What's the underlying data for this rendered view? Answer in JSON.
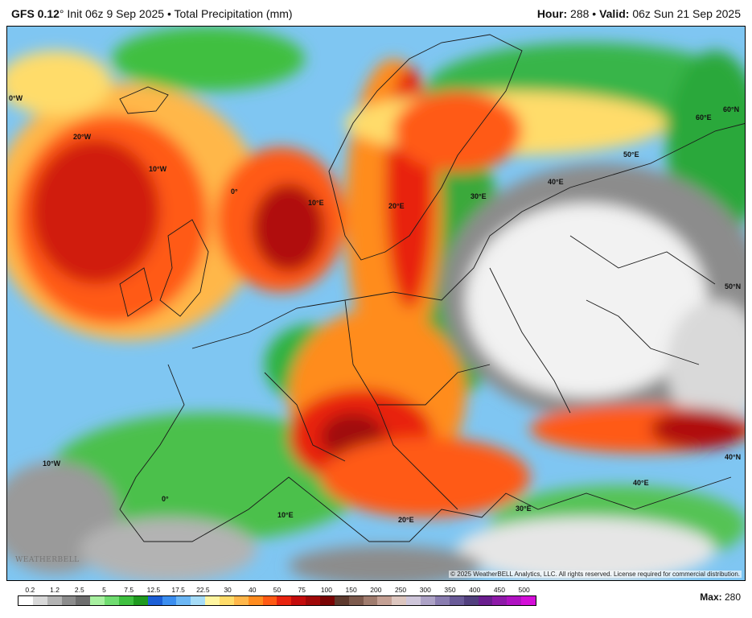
{
  "header": {
    "model": "GFS 0.12",
    "degree": "°",
    "init": "Init 06z 9 Sep 2025",
    "separator": "•",
    "product": "Total Precipitation (mm)",
    "hour_label": "Hour:",
    "hour_value": "288",
    "valid_label": "Valid:",
    "valid_value": "06z Sun 21 Sep 2025"
  },
  "map": {
    "copyright": "© 2025 WeatherBELL Analytics, LLC. All rights reserved. License required for commercial distribution.",
    "logo_text": "WEATHERBELL",
    "grid_labels": [
      "0°W",
      "20°W",
      "10°W",
      "0°",
      "10°E",
      "20°E",
      "30°E",
      "40°E",
      "50°E",
      "60°E",
      "60°N",
      "50°N",
      "40°N",
      "10°W",
      "0°",
      "10°E",
      "20°E",
      "30°E",
      "40°E"
    ],
    "colors": {
      "sea": "#cfe8f7",
      "land": "#ffffff",
      "border": "#222222"
    }
  },
  "legend": {
    "labels": [
      "0.2",
      "1.2",
      "2.5",
      "5",
      "7.5",
      "12.5",
      "17.5",
      "22.5",
      "30",
      "40",
      "50",
      "75",
      "100",
      "150",
      "200",
      "250",
      "300",
      "350",
      "400",
      "450",
      "500"
    ],
    "colors": [
      "#ffffff",
      "#d9d9d9",
      "#b3b3b3",
      "#8c8c8c",
      "#6e6e6e",
      "#a8f0a0",
      "#70dc70",
      "#3fc03f",
      "#1f9a1f",
      "#1c5fd6",
      "#3b8ef0",
      "#6cb7f5",
      "#a6dcf7",
      "#fff5a0",
      "#ffdc6a",
      "#ffb74a",
      "#ff8c1f",
      "#ff5a14",
      "#e8240f",
      "#c40c0c",
      "#a00808",
      "#7a0404",
      "#5e3a2e",
      "#7d5a4d",
      "#a07c6e",
      "#c4a094",
      "#ddc6bf",
      "#cfc6da",
      "#ada2c6",
      "#8a7db0",
      "#6a5b98",
      "#52407e",
      "#6a1e8e",
      "#8e1aa8",
      "#b012c2",
      "#d40ed8"
    ]
  },
  "max": {
    "label": "Max:",
    "value": "280"
  }
}
